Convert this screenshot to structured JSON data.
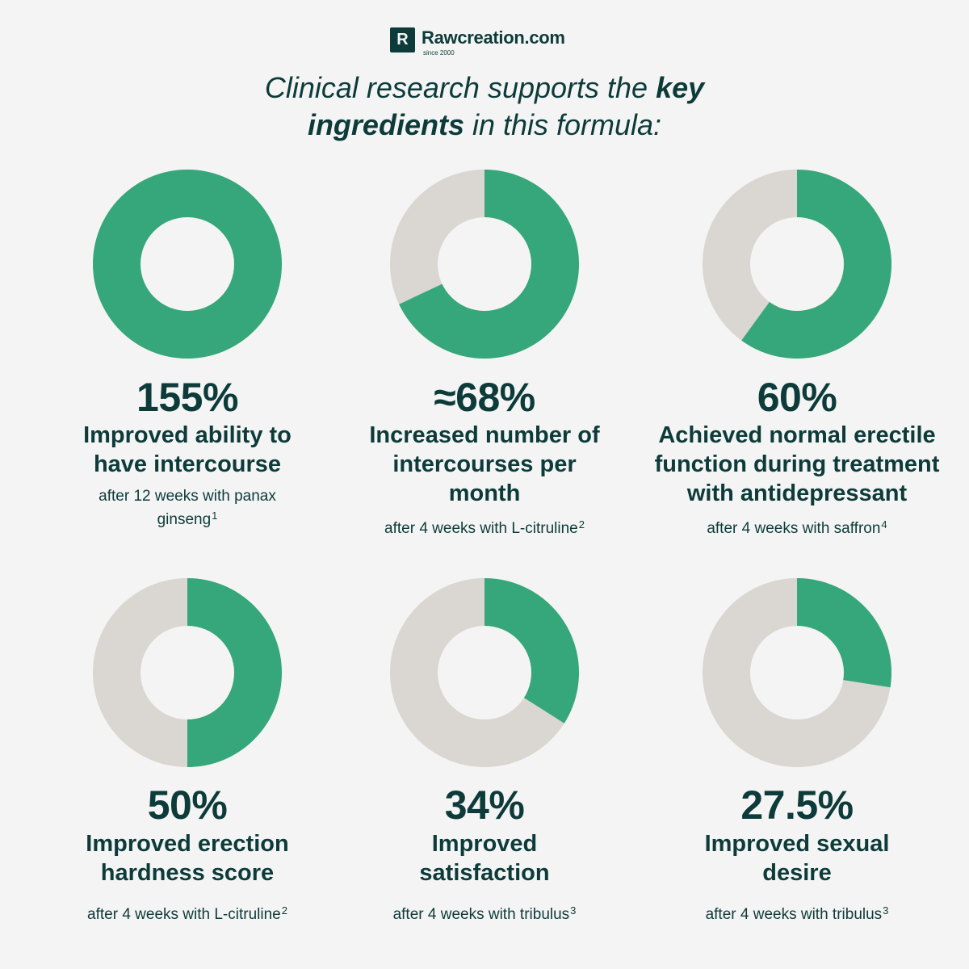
{
  "brand": {
    "mark": "R",
    "name": "Rawcreation.com",
    "since": "since 2000"
  },
  "headline": {
    "part1": "Clinical research supports the ",
    "bold1": "key",
    "bold2": "ingredients",
    "part2": " in this formula:"
  },
  "colors": {
    "filled": "#35a77a",
    "remaining": "#dad6d1",
    "hole": "#f4f4f4",
    "text": "#0d3b3a"
  },
  "chart_data": [
    {
      "type": "pie",
      "subtype": "donut",
      "value_label": "155%",
      "fraction": 1.0,
      "label": "Improved ability to have intercourse",
      "note": "after 12 weeks with panax ginseng",
      "footnote": "1"
    },
    {
      "type": "pie",
      "subtype": "donut",
      "value_label": "≈68%",
      "fraction": 0.68,
      "label": "Increased number of intercourses per month",
      "note": "after 4 weeks with L-citruline",
      "footnote": "2"
    },
    {
      "type": "pie",
      "subtype": "donut",
      "value_label": "60%",
      "fraction": 0.6,
      "label": "Achieved normal erectile function during treatment with antidepressant",
      "note": "after 4 weeks with saffron",
      "footnote": "4"
    },
    {
      "type": "pie",
      "subtype": "donut",
      "value_label": "50%",
      "fraction": 0.5,
      "label": "Improved erection hardness score",
      "note": "after 4 weeks with L-citruline",
      "footnote": "2"
    },
    {
      "type": "pie",
      "subtype": "donut",
      "value_label": "34%",
      "fraction": 0.34,
      "label": "Improved satisfaction",
      "note": "after 4 weeks with tribulus",
      "footnote": "3"
    },
    {
      "type": "pie",
      "subtype": "donut",
      "value_label": "27.5%",
      "fraction": 0.275,
      "label": "Improved sexual desire",
      "note": "after 4 weeks with tribulus",
      "footnote": "3"
    }
  ]
}
